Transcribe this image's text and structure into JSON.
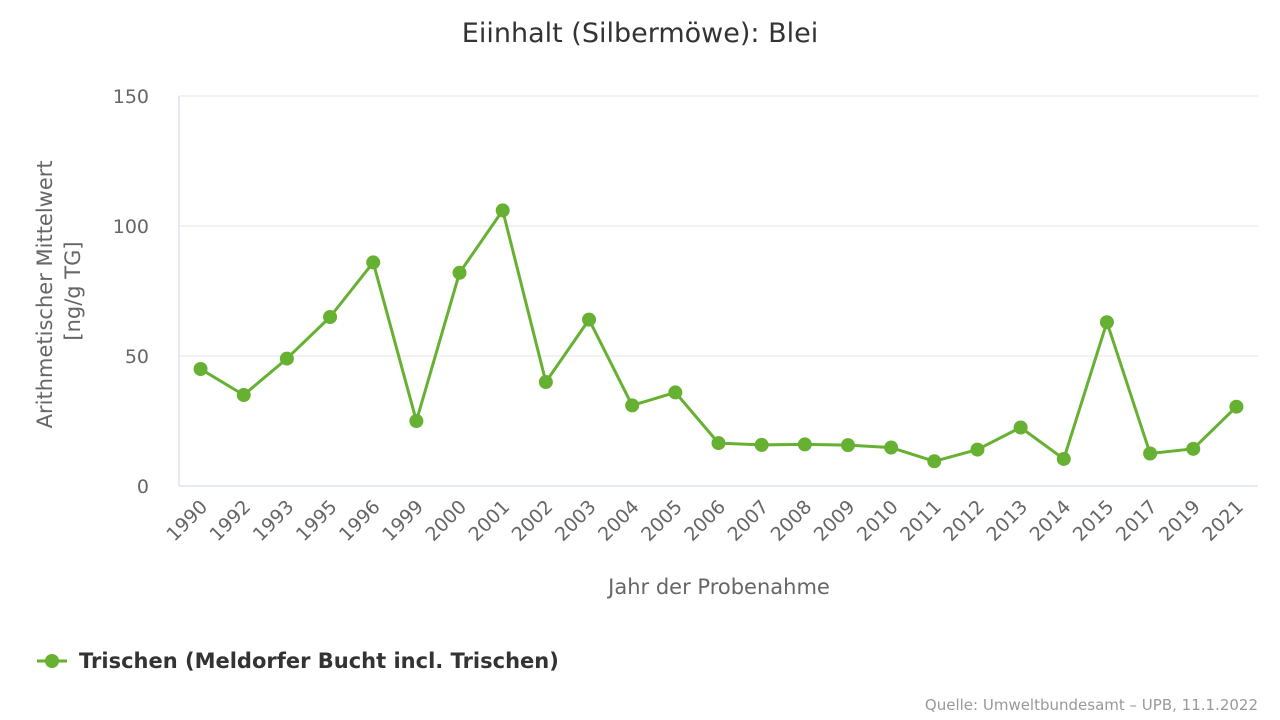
{
  "chart_data": {
    "type": "line",
    "title": "Eiinhalt (Silbermöwe): Blei",
    "xlabel": "Jahr der Probenahme",
    "ylabel_line1": "Arithmetischer Mittelwert",
    "ylabel_line2": "[ng/g TG]",
    "ylim": [
      0,
      150
    ],
    "yticks": [
      "0",
      "50",
      "100",
      "150"
    ],
    "grid": true,
    "legend_position": "bottom-left",
    "categories": [
      "1990",
      "1992",
      "1993",
      "1995",
      "1996",
      "1999",
      "2000",
      "2001",
      "2002",
      "2003",
      "2004",
      "2005",
      "2006",
      "2007",
      "2008",
      "2009",
      "2010",
      "2011",
      "2012",
      "2013",
      "2014",
      "2015",
      "2017",
      "2019",
      "2021"
    ],
    "series": [
      {
        "name": "Trischen (Meldorfer Bucht incl. Trischen)",
        "color": "#66b032",
        "values": [
          45,
          35,
          49,
          65,
          86,
          25,
          82,
          106,
          40,
          64,
          31,
          36,
          16.5,
          15.8,
          16,
          15.7,
          14.8,
          9.5,
          14,
          22.5,
          10.4,
          63,
          12.5,
          14.3,
          30.5
        ]
      }
    ],
    "credit": "Quelle: Umweltbundesamt – UPB, 11.1.2022"
  }
}
